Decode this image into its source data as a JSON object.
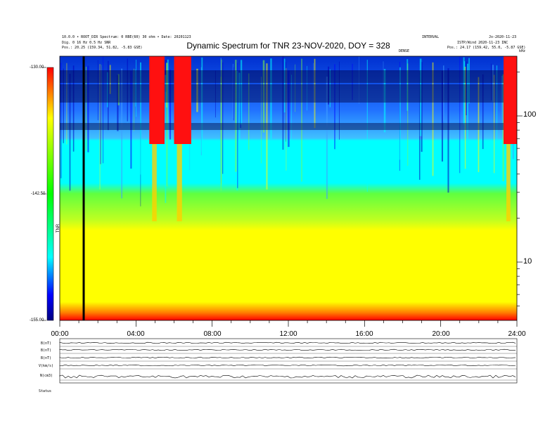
{
  "header": {
    "left_line1": "10.0.0 • ROOT_DIR Spectrum: 0 RBE(60) 30 ohm • Date: 20201123",
    "left_line2": "Dig. 0 16 Hz 0.5 Hz SNR",
    "left_line3": "Pos.: 20.25 (159.34, 51.82, -5.83 GSE)",
    "right_line1": "INTERVAL",
    "right_line2": "Jo-2020-11-23",
    "right_line3": "ISTP/Wind 2020-11-23 INC",
    "right_line4": "Pos.: 24.17 (159.42, 55.0, -5.87 GSE)",
    "top_mid": "DENSE",
    "corner": "kHz"
  },
  "chart_data": {
    "type": "heatmap",
    "title": "Dynamic Spectrum for TNR 23-NOV-2020, DOY = 328",
    "x_ticks": [
      "00:00",
      "04:00",
      "08:00",
      "12:00",
      "16:00",
      "20:00",
      "24:00"
    ],
    "y_ticks_right": [
      "100",
      "10"
    ],
    "y_scale": "log",
    "colorbar_ticks": [
      "-130.00",
      "-142.50",
      "-155.00"
    ],
    "colorbar_label": "TNR",
    "colormap": [
      "#000080",
      "#0000ff",
      "#00ffff",
      "#00ff00",
      "#ffff00",
      "#ff0000"
    ],
    "bursts": [
      {
        "start_h": 4.7,
        "end_h": 5.5
      },
      {
        "start_h": 6.0,
        "end_h": 6.9
      },
      {
        "start_h": 23.3,
        "end_h": 24.0
      }
    ],
    "data_gap_h": 1.2
  },
  "lower_panel": {
    "row_labels": [
      "B(nT)",
      "B(nT)",
      "B(nT)",
      "V(km/s)",
      "N(cm3)"
    ],
    "bottom_label": "Status"
  }
}
